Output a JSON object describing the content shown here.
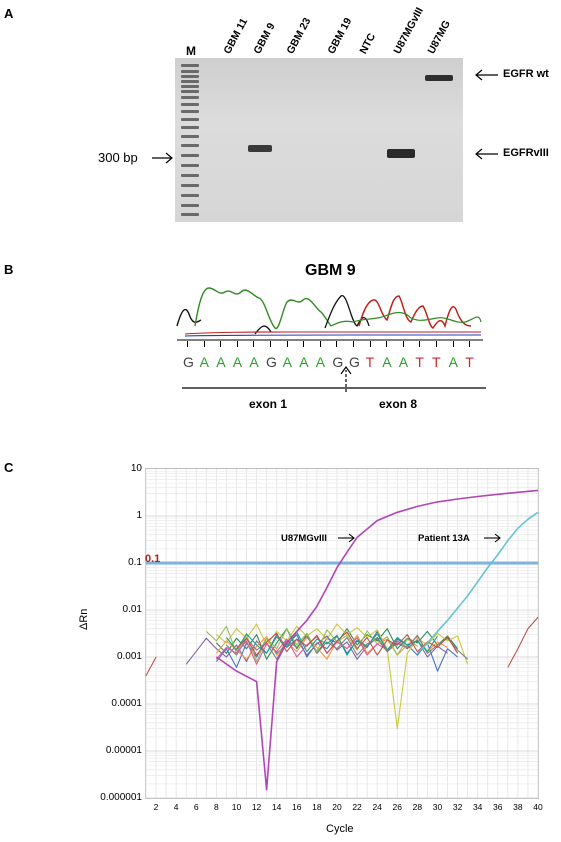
{
  "panels": {
    "a": {
      "letter": "A",
      "marker_lane": "M",
      "lanes": [
        "GBM 11",
        "GBM 9",
        "GBM 23",
        "GBM 19",
        "NTC",
        "U87MGvIII",
        "U87MG"
      ],
      "size_marker": "300 bp",
      "band_labels": {
        "wt": "EGFR wt",
        "viii": "EGFRvIII"
      }
    },
    "b": {
      "letter": "B",
      "title": "GBM 9",
      "sequence": [
        {
          "base": "G",
          "color": "#444444"
        },
        {
          "base": "A",
          "color": "#2ca02c"
        },
        {
          "base": "A",
          "color": "#2ca02c"
        },
        {
          "base": "A",
          "color": "#2ca02c"
        },
        {
          "base": "A",
          "color": "#2ca02c"
        },
        {
          "base": "G",
          "color": "#444444"
        },
        {
          "base": "A",
          "color": "#2ca02c"
        },
        {
          "base": "A",
          "color": "#2ca02c"
        },
        {
          "base": "A",
          "color": "#2ca02c"
        },
        {
          "base": "G",
          "color": "#444444"
        },
        {
          "base": "G",
          "color": "#444444"
        },
        {
          "base": "T",
          "color": "#d62728"
        },
        {
          "base": "A",
          "color": "#2ca02c"
        },
        {
          "base": "A",
          "color": "#2ca02c"
        },
        {
          "base": "T",
          "color": "#d62728"
        },
        {
          "base": "T",
          "color": "#d62728"
        },
        {
          "base": "A",
          "color": "#2ca02c"
        },
        {
          "base": "T",
          "color": "#d62728"
        }
      ],
      "exon_left": "exon 1",
      "exon_right": "exon 8"
    },
    "c": {
      "letter": "C",
      "threshold_label": "0.1",
      "curve_labels": {
        "control": "U87MGvIII",
        "patient": "Patient 13A"
      }
    }
  },
  "chart_data": {
    "type": "line",
    "title": "",
    "xlabel": "Cycle",
    "ylabel": "ΔRn",
    "y_scale": "log",
    "ylim": [
      1e-06,
      10
    ],
    "xlim": [
      1,
      40
    ],
    "x_ticks": [
      2,
      4,
      6,
      8,
      10,
      12,
      14,
      16,
      18,
      20,
      22,
      24,
      26,
      28,
      30,
      32,
      34,
      36,
      38,
      40
    ],
    "y_ticks": [
      "10",
      "1",
      "0.1",
      "0.01",
      "0.001",
      "0.0001",
      "0.00001",
      "0.000001"
    ],
    "grid": true,
    "threshold": 0.1,
    "series": [
      {
        "name": "U87MGvIII",
        "color": "#b245b5",
        "x": [
          8,
          10,
          12,
          13,
          14,
          15,
          16,
          17,
          18,
          19,
          20,
          21,
          22,
          24,
          26,
          28,
          30,
          32,
          34,
          36,
          38,
          40
        ],
        "y": [
          0.001,
          0.0005,
          0.0003,
          1.5e-06,
          0.0008,
          0.002,
          0.0035,
          0.006,
          0.012,
          0.03,
          0.08,
          0.17,
          0.35,
          0.8,
          1.2,
          1.6,
          2.0,
          2.3,
          2.6,
          2.9,
          3.2,
          3.5
        ]
      },
      {
        "name": "Patient 13A",
        "color": "#62c4d6",
        "x": [
          28,
          29,
          30,
          31,
          32,
          33,
          34,
          35,
          36,
          37,
          38,
          39,
          40
        ],
        "y": [
          0.0012,
          0.002,
          0.0035,
          0.006,
          0.011,
          0.02,
          0.04,
          0.08,
          0.15,
          0.3,
          0.55,
          0.85,
          1.2
        ]
      },
      {
        "color": "#c0504d",
        "x": [
          37,
          38,
          39,
          40
        ],
        "y": [
          0.0006,
          0.0015,
          0.004,
          0.007
        ]
      },
      {
        "color": "#c0504d",
        "x": [
          1,
          2
        ],
        "y": [
          0.0004,
          0.001
        ]
      },
      {
        "color": "#2e8b57",
        "x": [
          8,
          9,
          10,
          11,
          12,
          13,
          14,
          15,
          16,
          17,
          18,
          19,
          20,
          21,
          22,
          23,
          24,
          25,
          26,
          27,
          28,
          29,
          30,
          31,
          32
        ],
        "y": [
          0.002,
          0.0012,
          0.0025,
          0.0015,
          0.003,
          0.0009,
          0.002,
          0.004,
          0.0015,
          0.003,
          0.0012,
          0.0025,
          0.002,
          0.004,
          0.0018,
          0.003,
          0.0022,
          0.004,
          0.0015,
          0.0025,
          0.002,
          0.0035,
          0.0018,
          0.0028,
          0.0015
        ]
      },
      {
        "color": "#4472c4",
        "x": [
          8,
          9,
          10,
          11,
          12,
          13,
          14,
          15,
          16,
          17,
          18,
          19,
          20,
          21,
          22,
          23,
          24,
          25,
          26,
          27,
          28,
          29,
          30,
          31,
          32
        ],
        "y": [
          0.0008,
          0.0015,
          0.0006,
          0.002,
          0.001,
          0.0025,
          0.0012,
          0.0018,
          0.003,
          0.001,
          0.002,
          0.0015,
          0.0028,
          0.0012,
          0.0022,
          0.0016,
          0.0035,
          0.0013,
          0.0024,
          0.0018,
          0.0011,
          0.002,
          0.0005,
          0.0015,
          0.001
        ]
      },
      {
        "color": "#c9c93a",
        "x": [
          8,
          9,
          10,
          11,
          12,
          13,
          14,
          15,
          16,
          17,
          18,
          19,
          20,
          21,
          22,
          23,
          24,
          25,
          26,
          27,
          28,
          29,
          30,
          31,
          32,
          33
        ],
        "y": [
          0.003,
          0.002,
          0.004,
          0.0025,
          0.005,
          0.0018,
          0.0035,
          0.0022,
          0.0045,
          0.0028,
          0.004,
          0.0024,
          0.005,
          0.003,
          0.0042,
          0.0026,
          0.0038,
          0.0015,
          3e-05,
          0.0012,
          0.0025,
          0.0018,
          0.0032,
          0.0022,
          0.0028,
          0.0007
        ]
      },
      {
        "color": "#8064a2",
        "x": [
          5,
          7,
          8,
          9,
          10,
          11,
          12,
          13,
          14,
          15,
          16,
          17,
          18,
          19,
          20,
          21,
          22,
          23,
          24,
          25,
          26,
          27,
          28,
          29,
          30,
          31
        ],
        "y": [
          0.0007,
          0.0025,
          0.0015,
          0.001,
          0.0018,
          0.0008,
          0.0022,
          0.0012,
          0.003,
          0.0016,
          0.0024,
          0.0011,
          0.0019,
          0.0028,
          0.0014,
          0.0021,
          0.0009,
          0.0017,
          0.0026,
          0.0013,
          0.002,
          0.0015,
          0.0023,
          0.001,
          0.0017,
          0.0012
        ]
      },
      {
        "color": "#f79646",
        "x": [
          8,
          9,
          10,
          11,
          12,
          13,
          14,
          15,
          16,
          17,
          18,
          19,
          20,
          21,
          22,
          23,
          24,
          25,
          26,
          27,
          28,
          29,
          30,
          31
        ],
        "y": [
          0.0012,
          0.0022,
          0.0014,
          0.0009,
          0.0017,
          0.0027,
          0.0011,
          0.0021,
          0.0013,
          0.0026,
          0.0016,
          0.0009,
          0.0022,
          0.0015,
          0.0029,
          0.0012,
          0.0019,
          0.0024,
          0.0011,
          0.0018,
          0.0027,
          0.0013,
          0.0021,
          0.0016
        ]
      },
      {
        "color": "#7f7f7f",
        "x": [
          9,
          10,
          11,
          12,
          13,
          14,
          15,
          16,
          17,
          18,
          19,
          20,
          21,
          22,
          23,
          24,
          25,
          26,
          27,
          28,
          29,
          30,
          31,
          32,
          33
        ],
        "y": [
          0.0018,
          0.0011,
          0.0025,
          0.0014,
          0.002,
          0.0009,
          0.0023,
          0.0016,
          0.0028,
          0.0012,
          0.0021,
          0.0015,
          0.0026,
          0.0011,
          0.0019,
          0.0024,
          0.0013,
          0.0022,
          0.0016,
          0.0029,
          0.0012,
          0.0018,
          0.0025,
          0.0014,
          0.0009
        ]
      },
      {
        "color": "#9bbb59",
        "x": [
          7,
          8,
          9,
          10,
          11,
          12,
          13,
          14,
          15,
          16,
          17,
          18,
          19,
          20,
          21,
          22,
          23,
          24,
          25,
          26,
          27,
          28
        ],
        "y": [
          0.0035,
          0.0022,
          0.0045,
          0.0012,
          0.003,
          0.0008,
          0.0025,
          0.0015,
          0.004,
          0.0018,
          0.0032,
          0.0013,
          0.0038,
          0.0021,
          0.0029,
          0.0014,
          0.0036,
          0.0019,
          0.0027,
          0.0011,
          0.0024,
          0.0017
        ]
      },
      {
        "color": "#e05a9a",
        "x": [
          8,
          9,
          10,
          11,
          12,
          13,
          14,
          15,
          16,
          17,
          18,
          19,
          20,
          21,
          22,
          23,
          24,
          25,
          26
        ],
        "y": [
          0.0009,
          0.0016,
          0.0012,
          0.0022,
          0.0007,
          0.0019,
          0.0013,
          0.0024,
          0.001,
          0.0018,
          0.0027,
          0.0012,
          0.0021,
          0.0015,
          0.0026,
          0.0011,
          0.0019,
          0.0014,
          0.0023
        ]
      },
      {
        "color": "#17a589",
        "x": [
          9,
          10,
          11,
          12,
          13,
          14,
          15,
          16,
          17,
          18,
          19,
          20,
          21,
          22,
          23,
          24,
          25,
          26,
          27,
          28,
          29,
          30
        ],
        "y": [
          0.0026,
          0.0014,
          0.0031,
          0.0018,
          0.0012,
          0.0027,
          0.0016,
          0.0034,
          0.0013,
          0.0024,
          0.0019,
          0.0029,
          0.0011,
          0.0023,
          0.0017,
          0.0031,
          0.0014,
          0.0026,
          0.0018,
          0.0022,
          0.0013,
          0.0028
        ]
      },
      {
        "color": "#c0504d",
        "x": [
          10,
          11,
          12,
          13,
          14,
          15,
          16,
          17,
          18,
          19,
          20,
          21,
          22,
          23,
          24,
          25,
          26,
          27,
          28,
          29,
          30,
          31,
          32
        ],
        "y": [
          0.0015,
          0.0025,
          0.0011,
          0.0021,
          0.0032,
          0.0013,
          0.0024,
          0.0017,
          0.0029,
          0.0012,
          0.0022,
          0.0034,
          0.0015,
          0.0026,
          0.0011,
          0.0023,
          0.0018,
          0.003,
          0.0013,
          0.0021,
          0.0016,
          0.0027,
          0.0012
        ]
      }
    ]
  }
}
